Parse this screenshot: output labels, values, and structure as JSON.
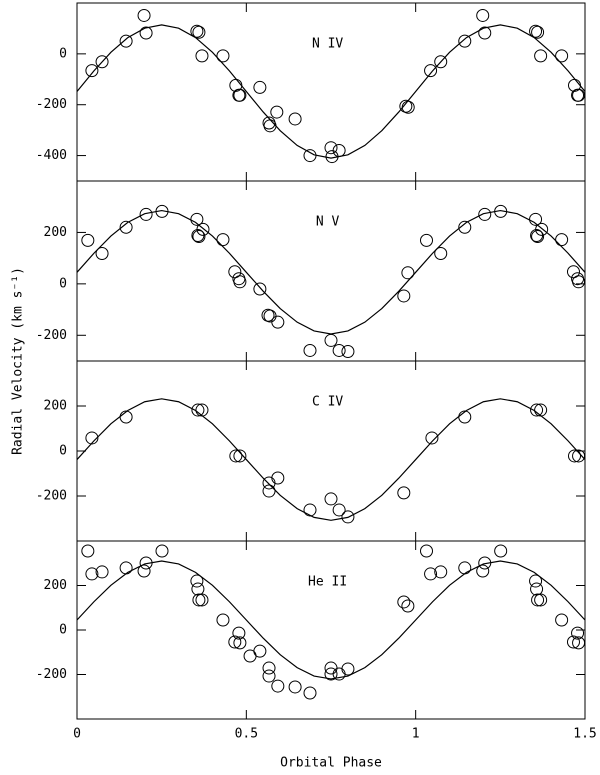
{
  "ylabel": "Radial Velocity (km s⁻¹)",
  "chart_data": [
    {
      "type": "scatter",
      "title": "N IV",
      "xlim": [
        0,
        1.5
      ],
      "ylim": [
        -500,
        200
      ],
      "yticks": [
        -400,
        -200,
        0
      ],
      "series": [
        {
          "type": "scatter",
          "color": "#000000",
          "x": [
            0.044,
            0.074,
            0.145,
            0.198,
            0.204,
            0.354,
            0.36,
            0.369,
            0.431,
            0.469,
            0.478,
            0.481,
            0.54,
            0.567,
            0.57,
            0.59,
            0.644,
            0.688,
            0.75,
            0.753,
            0.774,
            0.971,
            0.978,
            1.044,
            1.074,
            1.145,
            1.198,
            1.204,
            1.354,
            1.36,
            1.369,
            1.431,
            1.469,
            1.478,
            1.481
          ],
          "values": [
            -66,
            -31,
            50,
            151,
            82,
            89,
            85,
            -8,
            -8,
            -124,
            -163,
            -163,
            -132,
            -272,
            -283,
            -229,
            -256,
            -400,
            -369,
            -404,
            -380,
            -206,
            -210,
            -66,
            -31,
            50,
            151,
            82,
            89,
            85,
            -8,
            -8,
            -124,
            -163,
            -163
          ]
        },
        {
          "type": "line",
          "color": "#000000",
          "x": [
            0,
            0.05,
            0.1,
            0.15,
            0.2,
            0.25,
            0.3,
            0.35,
            0.4,
            0.45,
            0.5,
            0.55,
            0.6,
            0.65,
            0.7,
            0.75,
            0.8,
            0.85,
            0.9,
            0.95,
            1,
            1.05,
            1.1,
            1.15,
            1.2,
            1.25,
            1.3,
            1.35,
            1.4,
            1.45,
            1.5
          ],
          "values": [
            -148,
            -67,
            6,
            64,
            101,
            114,
            101,
            64,
            6,
            -67,
            -148,
            -229,
            -302,
            -360,
            -397,
            -410,
            -397,
            -360,
            -302,
            -229,
            -148,
            -67,
            6,
            64,
            101,
            114,
            101,
            64,
            6,
            -67,
            -148
          ]
        }
      ]
    },
    {
      "type": "scatter",
      "title": "N V",
      "xlim": [
        0,
        1.5
      ],
      "ylim": [
        -300,
        400
      ],
      "yticks": [
        -200,
        0,
        200
      ],
      "series": [
        {
          "type": "scatter",
          "color": "#000000",
          "x": [
            0.032,
            0.074,
            0.145,
            0.204,
            0.251,
            0.354,
            0.357,
            0.36,
            0.372,
            0.431,
            0.466,
            0.478,
            0.481,
            0.54,
            0.564,
            0.57,
            0.593,
            0.688,
            0.75,
            0.774,
            0.8,
            0.965,
            0.977,
            1.032,
            1.074,
            1.145,
            1.204,
            1.251,
            1.354,
            1.357,
            1.36,
            1.372,
            1.431,
            1.466,
            1.478,
            1.481
          ],
          "values": [
            169,
            118,
            220,
            270,
            282,
            251,
            188,
            184,
            212,
            172,
            47,
            20,
            8,
            -20,
            -122,
            -125,
            -149,
            -259,
            -220,
            -259,
            -263,
            -47,
            43,
            169,
            118,
            220,
            270,
            282,
            251,
            188,
            184,
            212,
            172,
            47,
            20,
            8
          ]
        },
        {
          "type": "line",
          "color": "#000000",
          "x": [
            0,
            0.05,
            0.1,
            0.15,
            0.2,
            0.25,
            0.3,
            0.35,
            0.4,
            0.45,
            0.5,
            0.55,
            0.6,
            0.65,
            0.7,
            0.75,
            0.8,
            0.85,
            0.9,
            0.95,
            1,
            1.05,
            1.1,
            1.15,
            1.2,
            1.25,
            1.3,
            1.35,
            1.4,
            1.45,
            1.5
          ],
          "values": [
            45,
            119,
            186,
            239,
            273,
            285,
            273,
            239,
            186,
            119,
            45,
            -29,
            -96,
            -149,
            -183,
            -195,
            -183,
            -149,
            -96,
            -29,
            45,
            119,
            186,
            239,
            273,
            285,
            273,
            239,
            186,
            119,
            45
          ]
        }
      ]
    },
    {
      "type": "scatter",
      "title": "C IV",
      "xlim": [
        0,
        1.5
      ],
      "ylim": [
        -400,
        400
      ],
      "yticks": [
        -200,
        0,
        200
      ],
      "series": [
        {
          "type": "scatter",
          "color": "#000000",
          "x": [
            0.044,
            0.145,
            0.357,
            0.369,
            0.469,
            0.481,
            0.567,
            0.567,
            0.593,
            0.688,
            0.75,
            0.774,
            0.8,
            0.965,
            1.048,
            1.145,
            1.357,
            1.369,
            1.469,
            1.481
          ],
          "values": [
            58,
            151,
            182,
            182,
            -22,
            -22,
            -142,
            -178,
            -120,
            -262,
            -213,
            -262,
            -293,
            -186,
            58,
            151,
            182,
            182,
            -22,
            -22
          ]
        },
        {
          "type": "line",
          "color": "#000000",
          "x": [
            0,
            0.05,
            0.1,
            0.15,
            0.2,
            0.25,
            0.3,
            0.35,
            0.4,
            0.45,
            0.5,
            0.55,
            0.6,
            0.65,
            0.7,
            0.75,
            0.8,
            0.85,
            0.9,
            0.95,
            1,
            1.05,
            1.1,
            1.15,
            1.2,
            1.25,
            1.3,
            1.35,
            1.4,
            1.45,
            1.5
          ],
          "values": [
            -38,
            45,
            121,
            180,
            219,
            232,
            219,
            180,
            121,
            45,
            -38,
            -121,
            -197,
            -256,
            -295,
            -308,
            -295,
            -256,
            -197,
            -121,
            -38,
            45,
            121,
            180,
            219,
            232,
            219,
            180,
            121,
            45,
            -38
          ]
        }
      ]
    },
    {
      "type": "scatter",
      "title": "He II",
      "xlim": [
        0,
        1.5
      ],
      "ylim": [
        -400,
        400
      ],
      "yticks": [
        -200,
        0,
        200
      ],
      "xticks": [
        0,
        0.5,
        1,
        1.5
      ],
      "xlabel": "Orbital Phase",
      "series": [
        {
          "type": "scatter",
          "color": "#000000",
          "x": [
            0.032,
            0.044,
            0.074,
            0.145,
            0.198,
            0.204,
            0.251,
            0.354,
            0.357,
            0.36,
            0.369,
            0.431,
            0.466,
            0.478,
            0.481,
            0.511,
            0.54,
            0.567,
            0.567,
            0.593,
            0.644,
            0.688,
            0.75,
            0.75,
            0.774,
            0.8,
            0.965,
            0.977,
            1.032,
            1.044,
            1.074,
            1.145,
            1.198,
            1.204,
            1.251,
            1.354,
            1.357,
            1.36,
            1.369,
            1.431,
            1.466,
            1.478,
            1.481
          ],
          "values": [
            355,
            252,
            261,
            279,
            265,
            301,
            355,
            220,
            184,
            135,
            135,
            45,
            -54,
            -14,
            -58,
            -117,
            -95,
            -171,
            -207,
            -252,
            -256,
            -283,
            -171,
            -198,
            -198,
            -175,
            126,
            108,
            355,
            252,
            261,
            279,
            265,
            301,
            355,
            220,
            184,
            135,
            135,
            45,
            -54,
            -14,
            -58
          ]
        },
        {
          "type": "line",
          "color": "#000000",
          "x": [
            0,
            0.05,
            0.1,
            0.15,
            0.2,
            0.25,
            0.3,
            0.35,
            0.4,
            0.45,
            0.5,
            0.55,
            0.6,
            0.65,
            0.7,
            0.75,
            0.8,
            0.85,
            0.9,
            0.95,
            1,
            1.05,
            1.1,
            1.15,
            1.2,
            1.25,
            1.3,
            1.35,
            1.4,
            1.45,
            1.5
          ],
          "values": [
            45,
            127,
            201,
            259,
            297,
            310,
            297,
            259,
            201,
            127,
            45,
            -37,
            -111,
            -169,
            -207,
            -220,
            -207,
            -169,
            -111,
            -37,
            45,
            127,
            201,
            259,
            297,
            310,
            297,
            259,
            201,
            127,
            45
          ]
        }
      ]
    }
  ]
}
